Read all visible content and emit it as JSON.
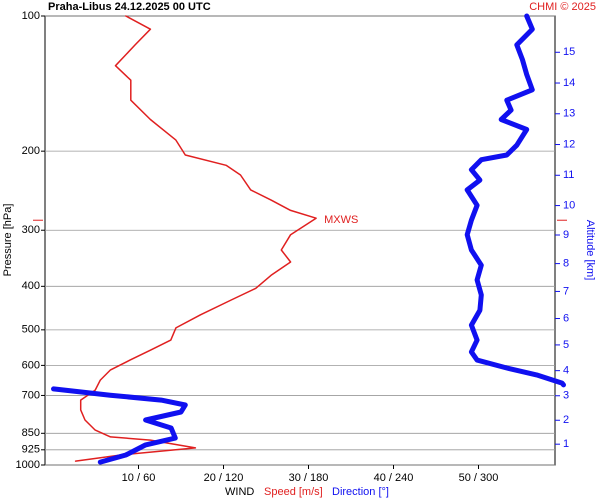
{
  "chart_data": {
    "type": "line",
    "title": "Praha-Libus   24.12.2025 00 UTC",
    "credit": "CHMI © 2025",
    "ylabel": "Pressure [hPa]",
    "y2label": "Altitude [km]",
    "xlabel": "WIND",
    "xlabel_speed": "Speed [m/s]",
    "xlabel_direction": "Direction [°]",
    "y_log": true,
    "y_inverted": true,
    "ylim": [
      100,
      1000
    ],
    "yticks": [
      100,
      200,
      300,
      400,
      500,
      600,
      700,
      850,
      925,
      1000
    ],
    "xlim": [
      -1,
      59
    ],
    "x2lim": [
      -6,
      354
    ],
    "xticks": [
      {
        "value": 10,
        "label": "10 / 60"
      },
      {
        "value": 20,
        "label": "20 / 120"
      },
      {
        "value": 30,
        "label": "30 / 180"
      },
      {
        "value": 40,
        "label": "40 / 240"
      },
      {
        "value": 50,
        "label": "50 / 300"
      }
    ],
    "y2ticks": [
      1,
      2,
      3,
      4,
      5,
      6,
      7,
      8,
      9,
      10,
      11,
      12,
      13,
      14,
      15
    ],
    "grid": true,
    "max_wind": {
      "label": "MXWS",
      "pressure": 285,
      "color": "#e02020"
    },
    "series": [
      {
        "name": "Speed [m/s]",
        "color": "#e02020",
        "pressure": [
          980,
          950,
          916,
          880,
          866,
          836,
          794,
          754,
          717,
          681,
          647,
          614,
          584,
          555,
          527,
          495,
          463,
          429,
          404,
          378,
          353,
          332,
          307,
          282,
          271,
          257,
          244,
          226,
          215,
          204,
          189,
          170,
          154,
          139,
          129,
          116,
          107,
          100
        ],
        "values": [
          2.6,
          7.9,
          16.7,
          11.4,
          6.7,
          4.9,
          3.7,
          3.2,
          3.2,
          4.9,
          5.5,
          6.7,
          9.0,
          11.4,
          13.8,
          14.4,
          17.3,
          20.9,
          23.8,
          25.6,
          27.9,
          26.8,
          27.9,
          30.9,
          27.9,
          25.6,
          23.2,
          22.0,
          20.3,
          15.5,
          14.4,
          11.4,
          9.1,
          9.1,
          7.3,
          9.6,
          11.4,
          8.5
        ]
      },
      {
        "name": "Direction [°]",
        "color": "#1010f0",
        "axis": "x2",
        "pressure": [
          985,
          950,
          902,
          871,
          827,
          794,
          762,
          735,
          717,
          699,
          677,
          663,
          663,
          657,
          630,
          608,
          584,
          560,
          527,
          488,
          452,
          418,
          387,
          359,
          332,
          307,
          285,
          264,
          244,
          232,
          220,
          209,
          204,
          194,
          179,
          170,
          162,
          154,
          146,
          135,
          125,
          116,
          107,
          100
        ],
        "values": [
          33,
          51,
          65,
          86,
          83,
          65,
          90,
          93,
          76,
          40,
          0,
          null,
          360,
          359,
          341,
          320,
          299,
          295,
          299,
          295,
          301,
          302,
          299,
          302,
          295,
          292,
          295,
          299,
          292,
          301,
          295,
          302,
          320,
          327,
          334,
          316,
          323,
          320,
          338,
          334,
          331,
          327,
          338,
          334
        ]
      }
    ]
  }
}
